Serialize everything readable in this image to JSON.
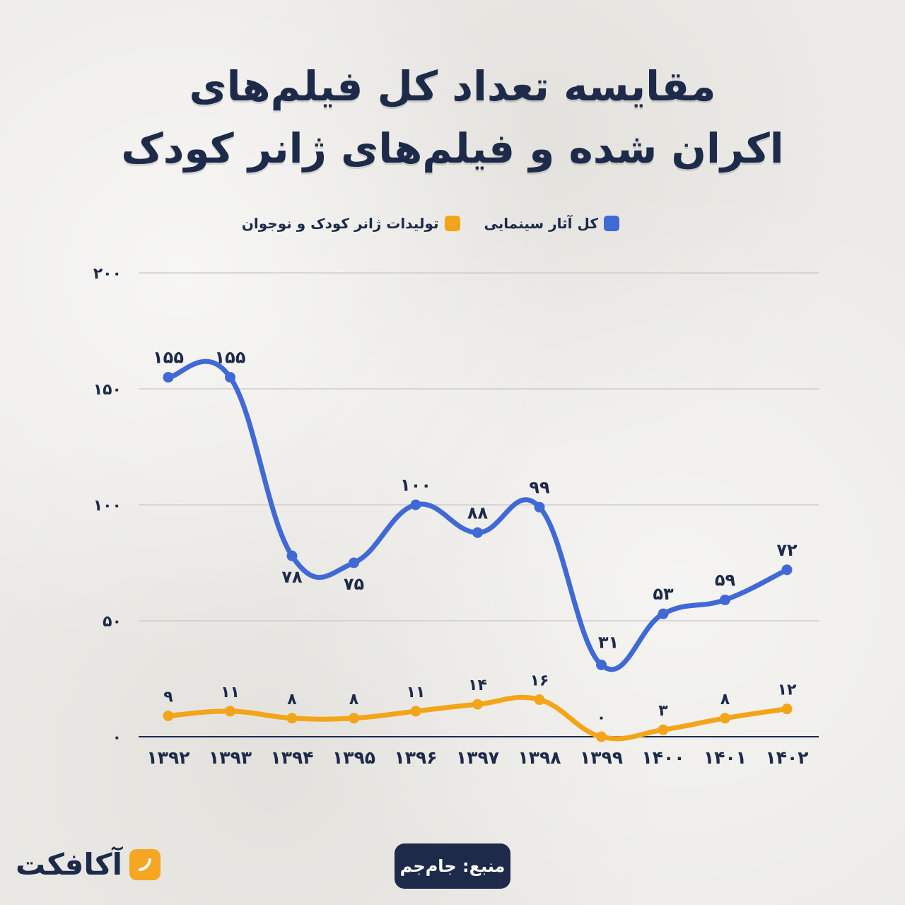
{
  "title_line1": "مقایسه تعداد کل فیلم‌های",
  "title_line2": "اکران شده و فیلم‌های ژانر کودک",
  "legend": {
    "all": "کل آثار سینمایی",
    "kids": "تولیدات ژانر کودک و نوجوان"
  },
  "colors": {
    "all": "#4169d6",
    "kids": "#f3a519",
    "text": "#1d2a4a"
  },
  "source_label": "منبع: جام‌جم",
  "logo_text": "آکافکت",
  "chart_data": {
    "type": "line",
    "x": [
      "۱۳۹۲",
      "۱۳۹۳",
      "۱۳۹۴",
      "۱۳۹۵",
      "۱۳۹۶",
      "۱۳۹۷",
      "۱۳۹۸",
      "۱۳۹۹",
      "۱۴۰۰",
      "۱۴۰۱",
      "۱۴۰۲"
    ],
    "ylim": [
      0,
      200
    ],
    "yticks": [
      0,
      50,
      100,
      150,
      200
    ],
    "ytick_labels": [
      "۰",
      "۵۰",
      "۱۰۰",
      "۱۵۰",
      "۲۰۰"
    ],
    "grid": true,
    "legend_position": "top",
    "series": [
      {
        "name": "کل آثار سینمایی",
        "values": [
          155,
          155,
          78,
          75,
          100,
          88,
          99,
          31,
          53,
          59,
          72
        ],
        "labels": [
          "۱۵۵",
          "۱۵۵",
          "۷۸",
          "۷۵",
          "۱۰۰",
          "۸۸",
          "۹۹",
          "۳۱",
          "۵۳",
          "۵۹",
          "۷۲"
        ]
      },
      {
        "name": "تولیدات ژانر کودک و نوجوان",
        "values": [
          9,
          11,
          8,
          8,
          11,
          14,
          16,
          0,
          3,
          8,
          12
        ],
        "labels": [
          "۹",
          "۱۱",
          "۸",
          "۸",
          "۱۱",
          "۱۴",
          "۱۶",
          "۰",
          "۳",
          "۸",
          "۱۲"
        ]
      }
    ]
  }
}
